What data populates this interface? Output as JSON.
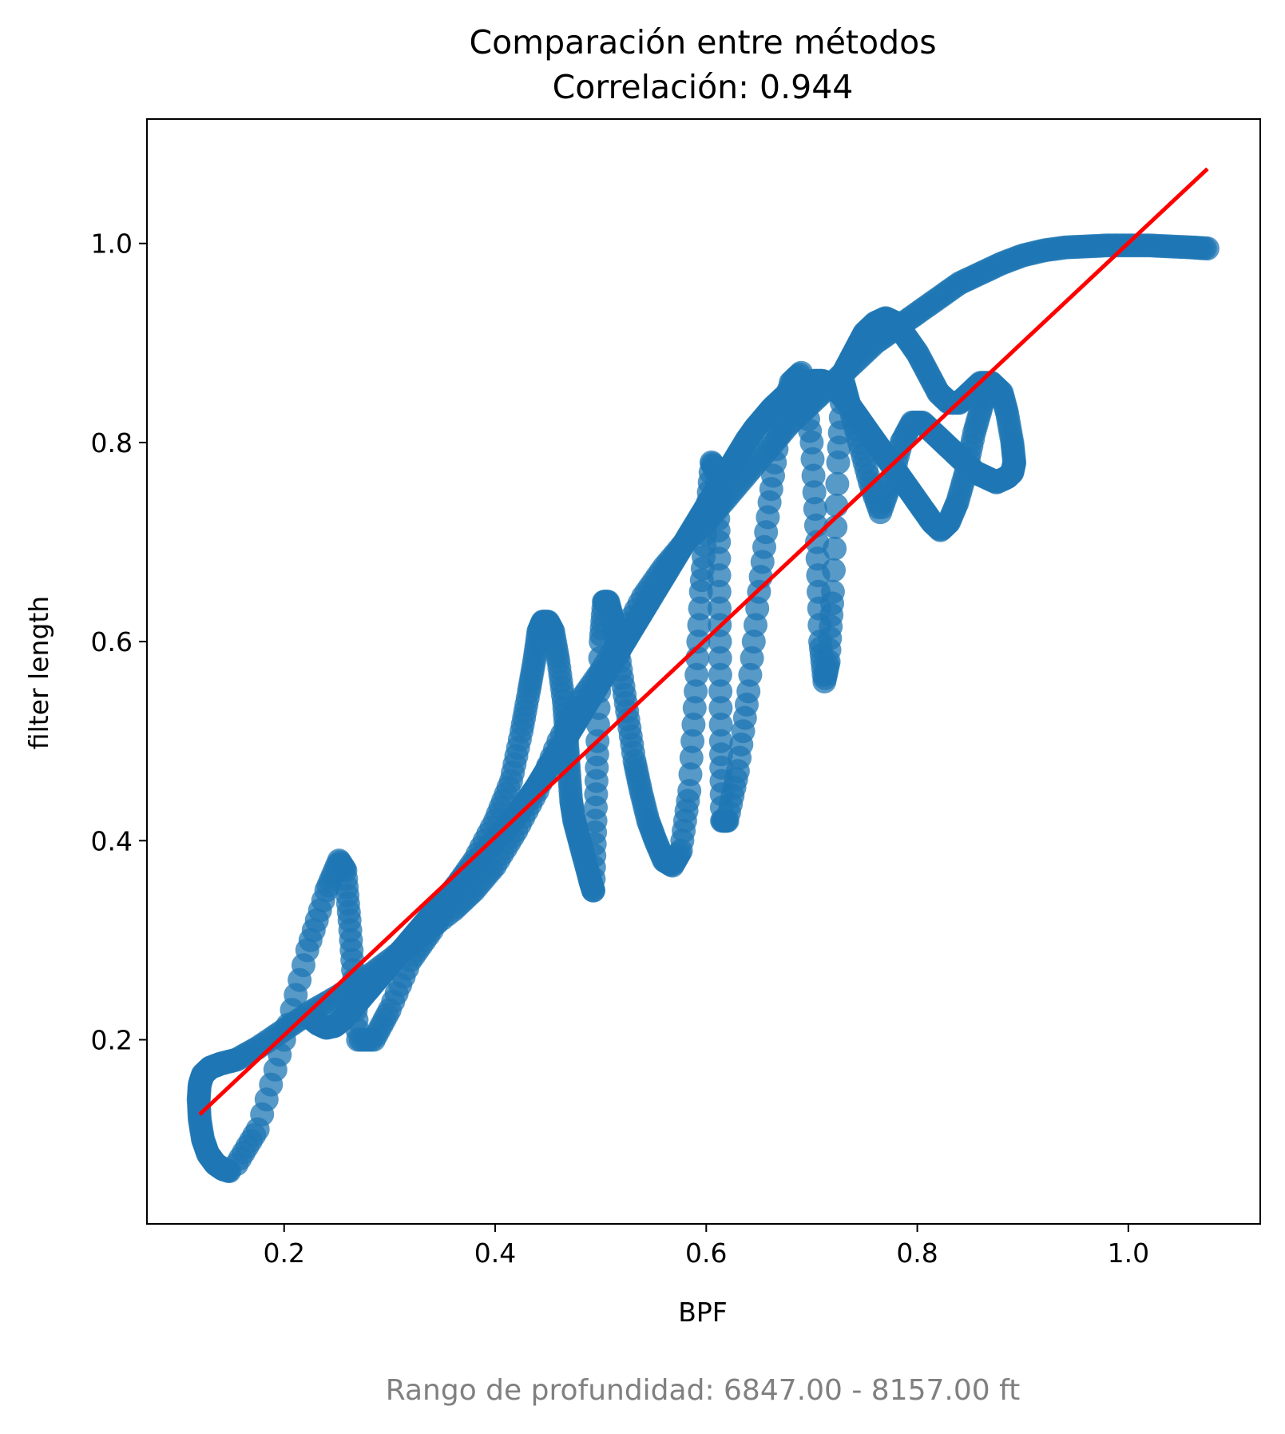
{
  "chart_data": {
    "type": "scatter",
    "title": "Comparación entre métodos",
    "subtitle": "Correlación: 0.944",
    "xlabel": "BPF",
    "ylabel": "filter length",
    "xlim": [
      0.07,
      1.125
    ],
    "ylim": [
      0.015,
      1.125
    ],
    "xticks": [
      {
        "value": 0.2,
        "label": "0.2"
      },
      {
        "value": 0.4,
        "label": "0.4"
      },
      {
        "value": 0.6,
        "label": "0.6"
      },
      {
        "value": 0.8,
        "label": "0.8"
      },
      {
        "value": 1.0,
        "label": "1.0"
      }
    ],
    "yticks": [
      {
        "value": 0.2,
        "label": "0.2"
      },
      {
        "value": 0.4,
        "label": "0.4"
      },
      {
        "value": 0.6,
        "label": "0.6"
      },
      {
        "value": 0.8,
        "label": "0.8"
      },
      {
        "value": 1.0,
        "label": "1.0"
      }
    ],
    "grid": false,
    "footer": "Rango de profundidad: 6847.00 - 8157.00 ft",
    "colors": {
      "points": "#1f77b4",
      "trend": "#ff0000",
      "footer": "#808080"
    },
    "trendline": {
      "x": [
        0.12,
        1.075
      ],
      "y": [
        0.125,
        1.075
      ]
    },
    "series": [
      {
        "x": [
          0.148,
          0.142,
          0.135,
          0.128,
          0.123,
          0.12,
          0.119,
          0.12,
          0.123,
          0.13,
          0.14,
          0.155,
          0.175,
          0.2,
          0.225,
          0.25,
          0.275,
          0.3,
          0.33,
          0.36,
          0.38,
          0.4,
          0.42,
          0.44,
          0.46,
          0.48,
          0.5,
          0.52,
          0.54,
          0.56,
          0.58,
          0.6,
          0.62,
          0.64,
          0.66,
          0.68,
          0.7,
          0.72,
          0.74,
          0.76,
          0.78,
          0.8,
          0.82,
          0.84,
          0.86,
          0.88,
          0.9,
          0.92,
          0.94,
          0.96,
          0.98,
          1.0,
          1.02,
          1.04,
          1.06,
          1.075
        ],
        "y": [
          0.068,
          0.07,
          0.075,
          0.085,
          0.1,
          0.12,
          0.14,
          0.155,
          0.165,
          0.172,
          0.176,
          0.18,
          0.192,
          0.21,
          0.228,
          0.243,
          0.26,
          0.28,
          0.305,
          0.33,
          0.35,
          0.375,
          0.41,
          0.45,
          0.5,
          0.54,
          0.57,
          0.605,
          0.645,
          0.675,
          0.7,
          0.72,
          0.745,
          0.77,
          0.795,
          0.82,
          0.84,
          0.86,
          0.88,
          0.9,
          0.915,
          0.93,
          0.945,
          0.96,
          0.97,
          0.98,
          0.988,
          0.993,
          0.996,
          0.997,
          0.998,
          0.998,
          0.998,
          0.997,
          0.996,
          0.995
        ]
      },
      {
        "x": [
          0.155,
          0.175,
          0.2,
          0.222,
          0.24,
          0.252,
          0.258,
          0.262,
          0.266,
          0.27,
          0.285,
          0.3,
          0.32,
          0.34,
          0.36,
          0.38,
          0.4,
          0.415,
          0.425,
          0.432,
          0.437,
          0.441,
          0.445,
          0.45,
          0.455,
          0.46,
          0.465,
          0.468,
          0.47,
          0.472,
          0.475,
          0.48,
          0.485,
          0.49,
          0.493
        ],
        "y": [
          0.075,
          0.11,
          0.2,
          0.29,
          0.35,
          0.38,
          0.37,
          0.32,
          0.26,
          0.2,
          0.2,
          0.23,
          0.28,
          0.31,
          0.35,
          0.38,
          0.42,
          0.46,
          0.51,
          0.55,
          0.58,
          0.61,
          0.62,
          0.62,
          0.61,
          0.58,
          0.54,
          0.5,
          0.47,
          0.44,
          0.42,
          0.4,
          0.38,
          0.36,
          0.35
        ]
      },
      {
        "x": [
          0.493,
          0.495,
          0.497,
          0.5,
          0.503,
          0.507,
          0.512,
          0.518,
          0.525,
          0.532,
          0.538,
          0.545,
          0.552,
          0.56,
          0.568,
          0.576,
          0.584,
          0.59,
          0.595,
          0.6,
          0.605,
          0.61,
          0.612,
          0.613,
          0.614,
          0.615,
          0.62,
          0.63,
          0.64,
          0.65,
          0.66,
          0.67,
          0.68,
          0.69,
          0.7,
          0.705,
          0.708,
          0.712,
          0.716,
          0.72,
          0.725,
          0.73
        ],
        "y": [
          0.35,
          0.42,
          0.5,
          0.6,
          0.64,
          0.64,
          0.62,
          0.58,
          0.53,
          0.48,
          0.45,
          0.42,
          0.4,
          0.38,
          0.375,
          0.39,
          0.45,
          0.55,
          0.65,
          0.72,
          0.78,
          0.77,
          0.7,
          0.6,
          0.5,
          0.42,
          0.42,
          0.47,
          0.55,
          0.65,
          0.74,
          0.82,
          0.86,
          0.87,
          0.8,
          0.7,
          0.6,
          0.56,
          0.58,
          0.65,
          0.78,
          0.87
        ]
      },
      {
        "x": [
          0.73,
          0.735,
          0.74,
          0.745,
          0.75,
          0.76,
          0.77,
          0.78,
          0.79,
          0.8,
          0.81,
          0.82,
          0.83,
          0.84,
          0.85,
          0.86,
          0.87,
          0.88,
          0.885,
          0.89,
          0.892,
          0.89,
          0.885,
          0.875,
          0.865,
          0.855,
          0.845,
          0.835,
          0.825,
          0.815,
          0.805,
          0.795,
          0.785,
          0.775,
          0.765,
          0.755,
          0.745,
          0.735,
          0.73
        ],
        "y": [
          0.87,
          0.88,
          0.89,
          0.9,
          0.91,
          0.92,
          0.925,
          0.92,
          0.905,
          0.89,
          0.87,
          0.85,
          0.84,
          0.84,
          0.85,
          0.86,
          0.86,
          0.85,
          0.83,
          0.8,
          0.78,
          0.77,
          0.765,
          0.76,
          0.765,
          0.77,
          0.78,
          0.79,
          0.8,
          0.81,
          0.82,
          0.82,
          0.8,
          0.76,
          0.73,
          0.76,
          0.8,
          0.84,
          0.86
        ]
      },
      {
        "x": [
          0.225,
          0.232,
          0.24,
          0.248,
          0.255,
          0.262,
          0.27,
          0.278,
          0.286,
          0.294,
          0.302,
          0.31,
          0.318,
          0.326,
          0.334,
          0.342,
          0.35,
          0.358,
          0.366,
          0.374,
          0.382,
          0.39,
          0.398,
          0.406,
          0.414,
          0.422,
          0.43,
          0.438,
          0.446,
          0.454,
          0.462,
          0.47,
          0.478,
          0.486,
          0.494,
          0.502,
          0.51,
          0.518,
          0.526,
          0.534,
          0.542,
          0.55,
          0.558,
          0.566,
          0.574,
          0.582,
          0.59,
          0.598,
          0.606,
          0.614,
          0.622,
          0.63,
          0.638,
          0.646,
          0.654,
          0.662,
          0.67,
          0.678,
          0.686,
          0.694,
          0.702,
          0.71,
          0.718,
          0.726,
          0.734,
          0.742,
          0.75,
          0.758,
          0.766,
          0.774,
          0.782,
          0.79,
          0.798,
          0.806,
          0.814,
          0.822,
          0.83,
          0.838,
          0.846,
          0.854,
          0.862,
          0.87
        ],
        "y": [
          0.222,
          0.216,
          0.212,
          0.214,
          0.22,
          0.228,
          0.238,
          0.248,
          0.258,
          0.268,
          0.278,
          0.288,
          0.298,
          0.308,
          0.318,
          0.328,
          0.338,
          0.348,
          0.358,
          0.368,
          0.378,
          0.388,
          0.398,
          0.408,
          0.418,
          0.428,
          0.44,
          0.452,
          0.466,
          0.48,
          0.494,
          0.508,
          0.522,
          0.536,
          0.55,
          0.564,
          0.578,
          0.592,
          0.606,
          0.62,
          0.634,
          0.648,
          0.662,
          0.676,
          0.69,
          0.704,
          0.718,
          0.732,
          0.746,
          0.76,
          0.774,
          0.788,
          0.802,
          0.814,
          0.824,
          0.834,
          0.842,
          0.85,
          0.856,
          0.86,
          0.862,
          0.862,
          0.858,
          0.85,
          0.84,
          0.828,
          0.816,
          0.804,
          0.792,
          0.78,
          0.768,
          0.756,
          0.744,
          0.732,
          0.72,
          0.712,
          0.72,
          0.74,
          0.77,
          0.81,
          0.84,
          0.86
        ]
      }
    ]
  }
}
